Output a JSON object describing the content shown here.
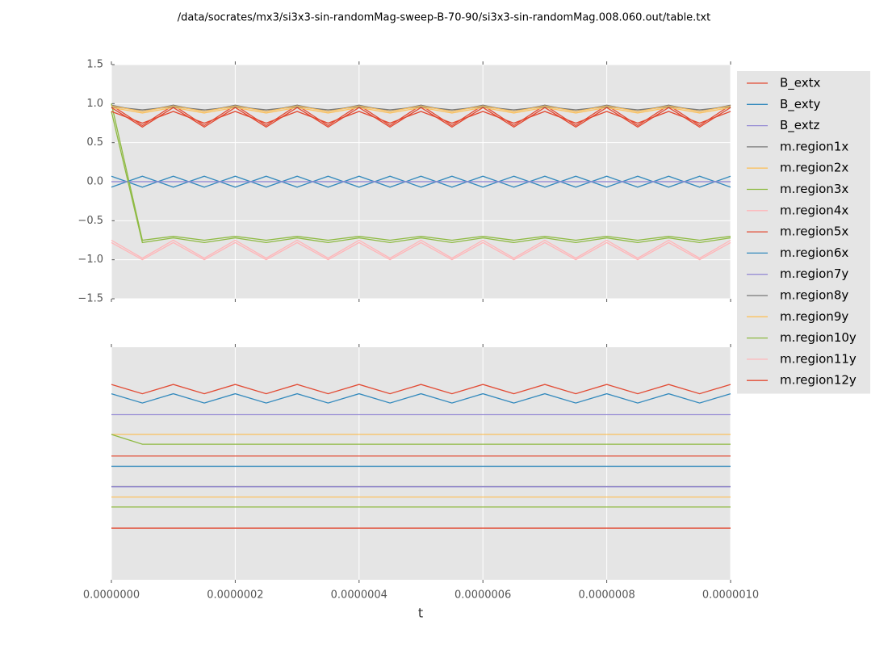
{
  "chart_data": [
    {
      "type": "line",
      "title": "/data/socrates/mx3/si3x3-sin-randomMag-sweep-B-70-90/si3x3-sin-randomMag.008.060.out/table.txt",
      "x": [
        0,
        5e-08,
        1e-07,
        1.5e-07,
        2e-07,
        2.5e-07,
        3e-07,
        3.5e-07,
        4e-07,
        4.5e-07,
        5e-07,
        5.5e-07,
        6e-07,
        6.5e-07,
        7e-07,
        7.5e-07,
        8e-07,
        8.5e-07,
        9e-07,
        9.5e-07,
        1e-06
      ],
      "xlim": [
        0,
        1e-06
      ],
      "xticks": [
        0,
        2e-07,
        4e-07,
        6e-07,
        8e-07,
        1e-06
      ],
      "ylim": [
        -1.5,
        1.5
      ],
      "yticks": [
        {
          "value": -1.5,
          "label": "−1.5"
        },
        {
          "value": -1,
          "label": "−1.0"
        },
        {
          "value": -0.5,
          "label": "−0.5"
        },
        {
          "value": 0,
          "label": "0.0"
        },
        0.5,
        {
          "value": 1,
          "label": "1.0"
        },
        1.5
      ],
      "grid": true,
      "legend": "right",
      "series": [
        {
          "name": "B_extx",
          "color": "#E24A33",
          "values": [
            0.98,
            0.72,
            0.98,
            0.72,
            0.98,
            0.72,
            0.98,
            0.72,
            0.98,
            0.72,
            0.98,
            0.72,
            0.98,
            0.72,
            0.98,
            0.72,
            0.98,
            0.72,
            0.98,
            0.72,
            0.98
          ]
        },
        {
          "name": "B_exty",
          "color": "#348ABD",
          "values": [
            0.07,
            -0.07,
            0.07,
            -0.07,
            0.07,
            -0.07,
            0.07,
            -0.07,
            0.07,
            -0.07,
            0.07,
            -0.07,
            0.07,
            -0.07,
            0.07,
            -0.07,
            0.07,
            -0.07,
            0.07,
            -0.07,
            0.07
          ]
        },
        {
          "name": "B_extz",
          "color": "#988ED5",
          "values": [
            0,
            0,
            0,
            0,
            0,
            0,
            0,
            0,
            0,
            0,
            0,
            0,
            0,
            0,
            0,
            0,
            0,
            0,
            0,
            0,
            0
          ]
        },
        {
          "name": "m.region1x",
          "color": "#777777",
          "values": [
            0.98,
            0.9,
            0.98,
            0.9,
            0.98,
            0.9,
            0.98,
            0.9,
            0.98,
            0.9,
            0.98,
            0.9,
            0.98,
            0.9,
            0.98,
            0.9,
            0.98,
            0.9,
            0.98,
            0.9,
            0.98
          ]
        },
        {
          "name": "m.region2x",
          "color": "#FBC15E",
          "values": [
            0.95,
            0.88,
            0.95,
            0.88,
            0.95,
            0.88,
            0.95,
            0.88,
            0.95,
            0.88,
            0.95,
            0.88,
            0.95,
            0.88,
            0.95,
            0.88,
            0.95,
            0.88,
            0.95,
            0.88,
            0.95
          ]
        },
        {
          "name": "m.region3x",
          "color": "#8EBA42",
          "values": [
            1.0,
            -0.75,
            -0.7,
            -0.75,
            -0.7,
            -0.75,
            -0.7,
            -0.75,
            -0.7,
            -0.75,
            -0.7,
            -0.75,
            -0.7,
            -0.75,
            -0.7,
            -0.75,
            -0.7,
            -0.75,
            -0.7,
            -0.75,
            -0.7
          ]
        },
        {
          "name": "m.region4x",
          "color": "#FFB5B8",
          "values": [
            -0.78,
            -1.0,
            -0.78,
            -1.0,
            -0.78,
            -1.0,
            -0.78,
            -1.0,
            -0.78,
            -1.0,
            -0.78,
            -1.0,
            -0.78,
            -1.0,
            -0.78,
            -1.0,
            -0.78,
            -1.0,
            -0.78,
            -1.0,
            -0.78
          ]
        },
        {
          "name": "m.region5x",
          "color": "#E24A33",
          "values": [
            0.95,
            0.7,
            0.95,
            0.7,
            0.95,
            0.7,
            0.95,
            0.7,
            0.95,
            0.7,
            0.95,
            0.7,
            0.95,
            0.7,
            0.95,
            0.7,
            0.95,
            0.7,
            0.95,
            0.7,
            0.95
          ]
        },
        {
          "name": "m.region6x",
          "color": "#348ABD",
          "values": [
            -0.07,
            0.07,
            -0.07,
            0.07,
            -0.07,
            0.07,
            -0.07,
            0.07,
            -0.07,
            0.07,
            -0.07,
            0.07,
            -0.07,
            0.07,
            -0.07,
            0.07,
            -0.07,
            0.07,
            -0.07,
            0.07,
            -0.07
          ]
        },
        {
          "name": "m.region7y",
          "color": "#988ED5",
          "values": [
            0,
            0,
            0,
            0,
            0,
            0,
            0,
            0,
            0,
            0,
            0,
            0,
            0,
            0,
            0,
            0,
            0,
            0,
            0,
            0,
            0
          ]
        },
        {
          "name": "m.region8y",
          "color": "#777777",
          "values": [
            0.96,
            0.92,
            0.96,
            0.92,
            0.96,
            0.92,
            0.96,
            0.92,
            0.96,
            0.92,
            0.96,
            0.92,
            0.96,
            0.92,
            0.96,
            0.92,
            0.96,
            0.92,
            0.96,
            0.92,
            0.96
          ]
        },
        {
          "name": "m.region9y",
          "color": "#FBC15E",
          "values": [
            0.97,
            0.9,
            0.97,
            0.9,
            0.97,
            0.9,
            0.97,
            0.9,
            0.97,
            0.9,
            0.97,
            0.9,
            0.97,
            0.9,
            0.97,
            0.9,
            0.97,
            0.9,
            0.97,
            0.9,
            0.97
          ]
        },
        {
          "name": "m.region10y",
          "color": "#8EBA42",
          "values": [
            0.9,
            -0.78,
            -0.72,
            -0.78,
            -0.72,
            -0.78,
            -0.72,
            -0.78,
            -0.72,
            -0.78,
            -0.72,
            -0.78,
            -0.72,
            -0.78,
            -0.72,
            -0.78,
            -0.72,
            -0.78,
            -0.72,
            -0.78,
            -0.72
          ]
        },
        {
          "name": "m.region11y",
          "color": "#FFB5B8",
          "values": [
            -0.75,
            -0.98,
            -0.75,
            -0.98,
            -0.75,
            -0.98,
            -0.75,
            -0.98,
            -0.75,
            -0.98,
            -0.75,
            -0.98,
            -0.75,
            -0.98,
            -0.75,
            -0.98,
            -0.75,
            -0.98,
            -0.75,
            -0.98,
            -0.75
          ]
        },
        {
          "name": "m.region12y",
          "color": "#E24A33",
          "values": [
            0.9,
            0.75,
            0.9,
            0.75,
            0.9,
            0.75,
            0.9,
            0.75,
            0.9,
            0.75,
            0.9,
            0.75,
            0.9,
            0.75,
            0.9,
            0.75,
            0.9,
            0.75,
            0.9,
            0.75,
            0.9
          ]
        }
      ]
    },
    {
      "type": "line",
      "x_label": "t",
      "x": [
        0,
        5e-08,
        1e-07,
        1.5e-07,
        2e-07,
        2.5e-07,
        3e-07,
        3.5e-07,
        4e-07,
        4.5e-07,
        5e-07,
        5.5e-07,
        6e-07,
        6.5e-07,
        7e-07,
        7.5e-07,
        8e-07,
        8.5e-07,
        9e-07,
        9.5e-07,
        1e-06
      ],
      "xlim": [
        0,
        1e-06
      ],
      "xticks": [
        {
          "value": 0,
          "label": "0.0000000"
        },
        {
          "value": 2e-07,
          "label": "0.0000002"
        },
        {
          "value": 4e-07,
          "label": "0.0000004"
        },
        {
          "value": 6e-07,
          "label": "0.0000006"
        },
        {
          "value": 8e-07,
          "label": "0.0000008"
        },
        {
          "value": 1e-06,
          "label": "0.0000010"
        }
      ],
      "ylim": [
        0,
        1
      ],
      "grid": true,
      "series": [
        {
          "color": "#E24A33",
          "values": [
            0.84,
            0.8,
            0.84,
            0.8,
            0.84,
            0.8,
            0.84,
            0.8,
            0.84,
            0.8,
            0.84,
            0.8,
            0.84,
            0.8,
            0.84,
            0.8,
            0.84,
            0.8,
            0.84,
            0.8,
            0.84
          ]
        },
        {
          "color": "#348ABD",
          "values": [
            0.8,
            0.76,
            0.8,
            0.76,
            0.8,
            0.76,
            0.8,
            0.76,
            0.8,
            0.76,
            0.8,
            0.76,
            0.8,
            0.76,
            0.8,
            0.76,
            0.8,
            0.76,
            0.8,
            0.76,
            0.8
          ]
        },
        {
          "color": "#988ED5",
          "values": [
            0.71,
            0.71,
            0.71,
            0.71,
            0.71,
            0.71,
            0.71,
            0.71,
            0.71,
            0.71,
            0.71,
            0.71,
            0.71,
            0.71,
            0.71,
            0.71,
            0.71,
            0.71,
            0.71,
            0.71,
            0.71
          ]
        },
        {
          "color": "#FBC15E",
          "values": [
            0.625,
            0.625,
            0.625,
            0.625,
            0.625,
            0.625,
            0.625,
            0.625,
            0.625,
            0.625,
            0.625,
            0.625,
            0.625,
            0.625,
            0.625,
            0.625,
            0.625,
            0.625,
            0.625,
            0.625,
            0.625
          ]
        },
        {
          "color": "#8EBA42",
          "values": [
            0.625,
            0.583,
            0.583,
            0.583,
            0.583,
            0.583,
            0.583,
            0.583,
            0.583,
            0.583,
            0.583,
            0.583,
            0.583,
            0.583,
            0.583,
            0.583,
            0.583,
            0.583,
            0.583,
            0.583,
            0.583
          ]
        },
        {
          "color": "#E24A33",
          "values": [
            0.532,
            0.532,
            0.532,
            0.532,
            0.532,
            0.532,
            0.532,
            0.532,
            0.532,
            0.532,
            0.532,
            0.532,
            0.532,
            0.532,
            0.532,
            0.532,
            0.532,
            0.532,
            0.532,
            0.532,
            0.532
          ]
        },
        {
          "color": "#348ABD",
          "values": [
            0.488,
            0.488,
            0.488,
            0.488,
            0.488,
            0.488,
            0.488,
            0.488,
            0.488,
            0.488,
            0.488,
            0.488,
            0.488,
            0.488,
            0.488,
            0.488,
            0.488,
            0.488,
            0.488,
            0.488,
            0.488
          ]
        },
        {
          "color": "#777777",
          "values": [
            0.401,
            0.401,
            0.401,
            0.401,
            0.401,
            0.401,
            0.401,
            0.401,
            0.401,
            0.401,
            0.401,
            0.401,
            0.401,
            0.401,
            0.401,
            0.401,
            0.401,
            0.401,
            0.401,
            0.401,
            0.401
          ]
        },
        {
          "color": "#988ED5",
          "values": [
            0.4,
            0.4,
            0.4,
            0.4,
            0.4,
            0.4,
            0.4,
            0.4,
            0.4,
            0.4,
            0.4,
            0.4,
            0.4,
            0.4,
            0.4,
            0.4,
            0.4,
            0.4,
            0.4,
            0.4,
            0.4
          ]
        },
        {
          "color": "#FBC15E",
          "values": [
            0.356,
            0.356,
            0.356,
            0.356,
            0.356,
            0.356,
            0.356,
            0.356,
            0.356,
            0.356,
            0.356,
            0.356,
            0.356,
            0.356,
            0.356,
            0.356,
            0.356,
            0.356,
            0.356,
            0.356,
            0.356
          ]
        },
        {
          "color": "#8EBA42",
          "values": [
            0.313,
            0.313,
            0.313,
            0.313,
            0.313,
            0.313,
            0.313,
            0.313,
            0.313,
            0.313,
            0.313,
            0.313,
            0.313,
            0.313,
            0.313,
            0.313,
            0.313,
            0.313,
            0.313,
            0.313,
            0.313
          ]
        },
        {
          "color": "#E24A33",
          "values": [
            0.222,
            0.222,
            0.222,
            0.222,
            0.222,
            0.222,
            0.222,
            0.222,
            0.222,
            0.222,
            0.222,
            0.222,
            0.222,
            0.222,
            0.222,
            0.222,
            0.222,
            0.222,
            0.222,
            0.222,
            0.222
          ]
        }
      ]
    }
  ]
}
